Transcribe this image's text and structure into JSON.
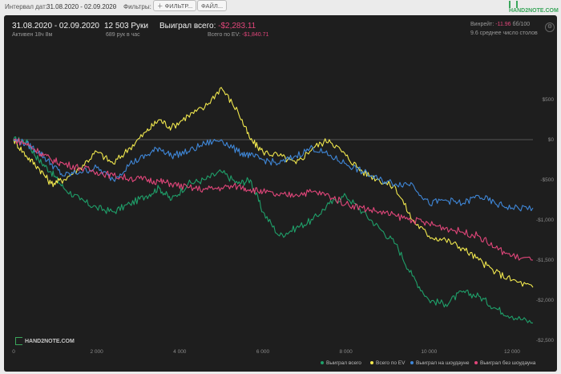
{
  "toolbar": {
    "interval_label": "Интервал дат:",
    "interval_value": "31.08.2020 - 02.09.2020",
    "filters_label": "Фильтры:",
    "filter_button": "ФИЛЬТР...",
    "file_button": "ФАЙЛ...",
    "logo_text": "HAND2NOTE.COM"
  },
  "stats": {
    "date_range": "31.08.2020 - 02.09.2020",
    "active": "Активен 18ч 8м",
    "hands": "12 503 Руки",
    "hands_per_hour": "689 рук в час",
    "won_total_label": "Выиграл всего:",
    "won_total_value": "-$2,283.11",
    "ev_label": "Всего по EV:",
    "ev_value": "-$1,840.71",
    "winrate_label": "Винрейт:",
    "winrate_value": "-11.96",
    "winrate_unit": "бб/100",
    "avg_tables": "9.6 среднее число столов"
  },
  "watermark": "HAND2NOTE.COM",
  "colors": {
    "green": "#1fa06a",
    "yellow": "#f2e94e",
    "blue": "#3f87d8",
    "pink": "#e1467a",
    "background": "#1e1e1e"
  },
  "chart_data": {
    "type": "line",
    "xlim": [
      0,
      12503
    ],
    "ylim": [
      -2500,
      750
    ],
    "x_ticks": [
      0,
      2000,
      4000,
      6000,
      8000,
      10000,
      12000
    ],
    "x_tick_labels": [
      "0",
      "2 000",
      "4 000",
      "6 000",
      "8 000",
      "10 000",
      "12 000"
    ],
    "y_ticks": [
      500,
      0,
      -500,
      -1000,
      -1500,
      -2000,
      -2500
    ],
    "y_tick_labels": [
      "$500",
      "$0",
      "-$500",
      "-$1,000",
      "-$1,500",
      "-$2,000",
      "-$2,500"
    ],
    "grid": false,
    "legend_position": "bottom-right",
    "series": [
      {
        "name": "Выиграл всего",
        "color": "#1fa06a",
        "x": [
          0,
          300,
          600,
          900,
          1200,
          1600,
          2000,
          2400,
          2800,
          3200,
          3500,
          3800,
          4200,
          4600,
          5000,
          5400,
          5700,
          6000,
          6400,
          6800,
          7200,
          7600,
          8000,
          8400,
          8800,
          9200,
          9600,
          10000,
          10400,
          10800,
          11200,
          11600,
          12000,
          12503
        ],
        "y": [
          0,
          -20,
          -250,
          -400,
          -600,
          -750,
          -850,
          -900,
          -800,
          -700,
          -600,
          -750,
          -550,
          -500,
          -400,
          -550,
          -500,
          -900,
          -1200,
          -1100,
          -1000,
          -800,
          -700,
          -900,
          -1100,
          -1300,
          -1700,
          -2000,
          -2050,
          -1900,
          -1950,
          -2100,
          -2200,
          -2283
        ]
      },
      {
        "name": "Всего по EV",
        "color": "#f2e94e",
        "x": [
          0,
          300,
          600,
          900,
          1200,
          1600,
          2000,
          2400,
          2800,
          3200,
          3500,
          3800,
          4200,
          4600,
          5000,
          5400,
          5700,
          6000,
          6400,
          6800,
          7200,
          7600,
          8000,
          8400,
          8800,
          9200,
          9600,
          10000,
          10400,
          10800,
          11200,
          11600,
          12000,
          12503
        ],
        "y": [
          0,
          -200,
          -350,
          -550,
          -500,
          -350,
          -150,
          -300,
          -100,
          100,
          250,
          150,
          300,
          400,
          650,
          350,
          0,
          -150,
          -200,
          -300,
          -100,
          0,
          -200,
          -400,
          -500,
          -600,
          -1000,
          -1200,
          -1250,
          -1350,
          -1500,
          -1650,
          -1750,
          -1841
        ]
      },
      {
        "name": "Выиграл на шоудауне",
        "color": "#3f87d8",
        "x": [
          0,
          300,
          600,
          900,
          1200,
          1600,
          2000,
          2400,
          2800,
          3200,
          3500,
          3800,
          4200,
          4600,
          5000,
          5400,
          5700,
          6000,
          6400,
          6800,
          7200,
          7600,
          8000,
          8400,
          8800,
          9200,
          9600,
          10000,
          10400,
          10800,
          11200,
          11600,
          12000,
          12503
        ],
        "y": [
          0,
          -50,
          -150,
          -300,
          -450,
          -400,
          -350,
          -500,
          -300,
          -200,
          -100,
          -200,
          -150,
          -50,
          0,
          -150,
          -200,
          -250,
          -300,
          -200,
          -100,
          -200,
          -300,
          -400,
          -500,
          -550,
          -550,
          -800,
          -750,
          -800,
          -700,
          -800,
          -850,
          -850
        ]
      },
      {
        "name": "Выиграл без шоудауна",
        "color": "#e1467a",
        "x": [
          0,
          300,
          600,
          900,
          1200,
          1600,
          2000,
          2400,
          2800,
          3200,
          3500,
          3800,
          4200,
          4600,
          5000,
          5400,
          5700,
          6000,
          6400,
          6800,
          7200,
          7600,
          8000,
          8400,
          8800,
          9200,
          9600,
          10000,
          10400,
          10800,
          11200,
          11600,
          12000,
          12503
        ],
        "y": [
          0,
          -50,
          -150,
          -250,
          -300,
          -350,
          -400,
          -450,
          -480,
          -500,
          -520,
          -550,
          -600,
          -620,
          -600,
          -580,
          -620,
          -650,
          -700,
          -680,
          -650,
          -700,
          -800,
          -850,
          -900,
          -950,
          -1000,
          -1050,
          -1100,
          -1150,
          -1200,
          -1350,
          -1450,
          -1500
        ]
      }
    ]
  }
}
